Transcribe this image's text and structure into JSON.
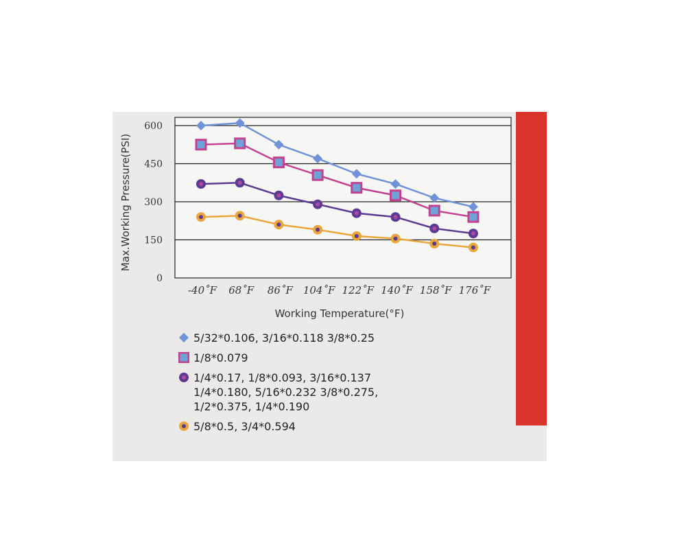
{
  "chart_data": {
    "type": "line",
    "xlabel": "Working Temperature(°F)",
    "ylabel": "Max.Working Pressure(PSI)",
    "categories": [
      "-40˚F",
      "68˚F",
      "86˚F",
      "104˚F",
      "122˚F",
      "140˚F",
      "158˚F",
      "176˚F"
    ],
    "yticks": [
      "0",
      "150",
      "300",
      "450",
      "600"
    ],
    "ylim": [
      0,
      600
    ],
    "grid": "horizontal",
    "legend_placement": "bottom",
    "series": [
      {
        "name": "5/32*0.106, 3/16*0.118 3/8*0.25",
        "marker": "diamond",
        "color": "#6f93d6",
        "values": [
          600,
          610,
          525,
          470,
          410,
          370,
          315,
          280
        ]
      },
      {
        "name": "1/8*0.079",
        "marker": "square",
        "color": "#c4418f",
        "values": [
          525,
          530,
          455,
          405,
          355,
          325,
          265,
          240
        ]
      },
      {
        "name": "1/4*0.17, 1/8*0.093, 3/16*0.137\n1/4*0.180, 5/16*0.232 3/8*0.275,\n1/2*0.375, 1/4*0.190",
        "marker": "circle",
        "color": "#5b3a94",
        "values": [
          370,
          375,
          325,
          290,
          255,
          240,
          195,
          175
        ]
      },
      {
        "name": "5/8*0.5, 3/4*0.594",
        "marker": "circle",
        "color": "#eaa63a",
        "values": [
          240,
          245,
          210,
          190,
          165,
          155,
          135,
          120
        ]
      }
    ]
  }
}
